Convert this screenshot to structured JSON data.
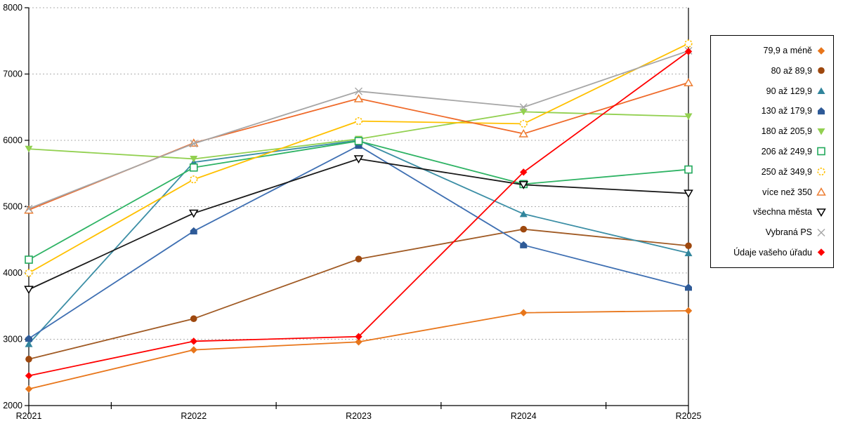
{
  "chart_data": {
    "type": "line",
    "title": "",
    "xlabel": "",
    "ylabel": "",
    "categories": [
      "R2021",
      "R2022",
      "R2023",
      "R2024",
      "R2025"
    ],
    "y_ticks": [
      "2000",
      "3000",
      "4000",
      "5000",
      "6000",
      "7000",
      "8000"
    ],
    "ylim": [
      2000,
      8000
    ],
    "grid": "horizontal-dashed",
    "legend_position": "right",
    "series": [
      {
        "name": "79,9 a méně",
        "color": "#E8761B",
        "line_color": "#E8761B",
        "marker": "diamond",
        "fill": "solid",
        "values": [
          2250,
          2840,
          2960,
          3400,
          3430
        ]
      },
      {
        "name": "80 až 89,9",
        "color": "#9E480E",
        "line_color": "#A05A24",
        "marker": "circle",
        "fill": "solid",
        "values": [
          2700,
          3310,
          4210,
          4660,
          4410
        ]
      },
      {
        "name": "90 až 129,9",
        "color": "#31859C",
        "line_color": "#3B8EA5",
        "marker": "triangle-up",
        "fill": "solid",
        "values": [
          2930,
          5670,
          6000,
          4890,
          4300
        ]
      },
      {
        "name": "130 až 179,9",
        "color": "#2E5A97",
        "line_color": "#3E6FB2",
        "marker": "pentagon",
        "fill": "solid",
        "values": [
          3010,
          4630,
          5920,
          4420,
          3780
        ]
      },
      {
        "name": "180 až 205,9",
        "color": "#92D050",
        "line_color": "#92D050",
        "marker": "triangle-down",
        "fill": "solid",
        "values": [
          5870,
          5720,
          6020,
          6430,
          6360
        ]
      },
      {
        "name": "206 až 249,9",
        "color": "#22A95C",
        "line_color": "#2EB364",
        "marker": "square",
        "fill": "open",
        "values": [
          4200,
          5590,
          5990,
          5340,
          5560
        ]
      },
      {
        "name": "250 až 349,9",
        "color": "#FFC000",
        "line_color": "#FFC000",
        "marker": "circle-dashed",
        "fill": "open",
        "values": [
          4000,
          5410,
          6290,
          6250,
          7460
        ]
      },
      {
        "name": "více než 350",
        "color": "#ED7D31",
        "line_color": "#EF6A2A",
        "marker": "triangle-up",
        "fill": "open",
        "values": [
          4950,
          5960,
          6630,
          6100,
          6870
        ]
      },
      {
        "name": "všechna města",
        "color": "#000000",
        "line_color": "#1A1A1A",
        "marker": "triangle-down",
        "fill": "open",
        "values": [
          3750,
          4900,
          5720,
          5330,
          5200
        ]
      },
      {
        "name": "Vybraná PS",
        "color": "#A6A6A6",
        "line_color": "#A6A6A6",
        "marker": "x",
        "fill": "open",
        "values": [
          4970,
          5950,
          6740,
          6500,
          7350
        ]
      },
      {
        "name": "Údaje vašeho úřadu",
        "color": "#FF0000",
        "line_color": "#FF0000",
        "marker": "diamond",
        "fill": "solid",
        "values": [
          2450,
          2970,
          3040,
          5520,
          7340
        ]
      }
    ]
  }
}
